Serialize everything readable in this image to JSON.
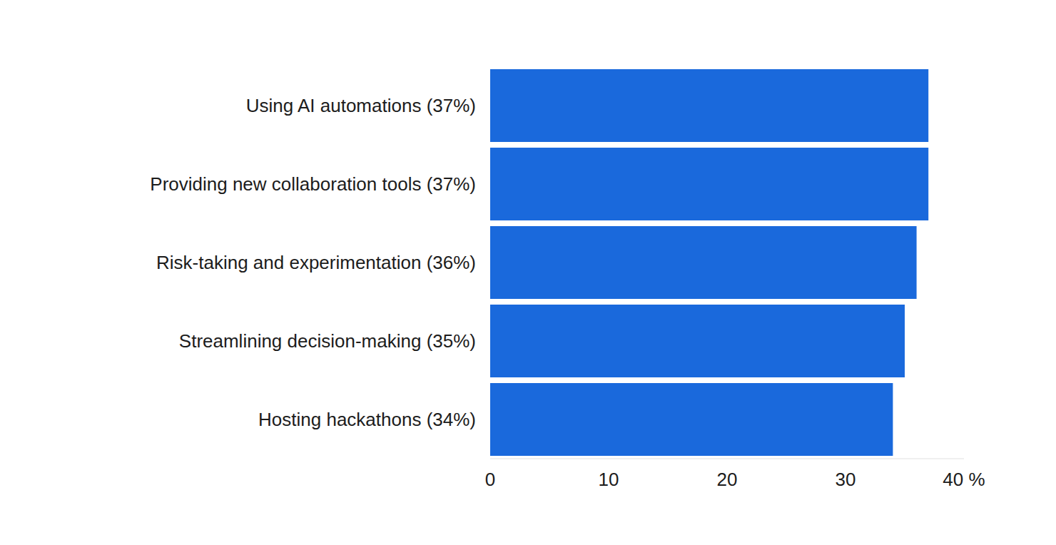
{
  "chart_data": {
    "type": "bar",
    "orientation": "horizontal",
    "categories": [
      "Using AI automations (37%)",
      "Providing new collaboration tools (37%)",
      "Risk-taking and experimentation (36%)",
      "Streamlining decision-making (35%)",
      "Hosting hackathons (34%)"
    ],
    "values": [
      37,
      37,
      36,
      35,
      34
    ],
    "color": "#1a69dc",
    "xlim": [
      0,
      40
    ],
    "xticks": [
      0,
      10,
      20,
      30,
      {
        "value": 40,
        "label": "40 %"
      }
    ],
    "grid": false
  }
}
